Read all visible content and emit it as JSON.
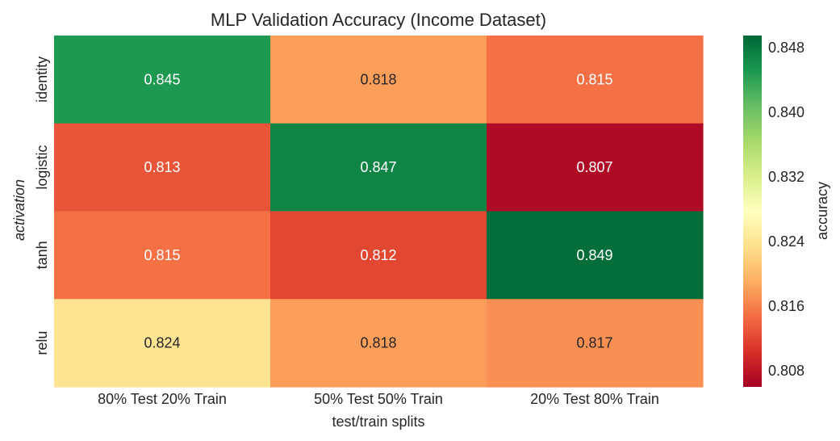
{
  "chart_data": {
    "type": "heatmap",
    "title": "MLP Validation Accuracy (Income Dataset)",
    "xlabel": "test/train splits",
    "ylabel": "activation",
    "x_categories": [
      "80% Test 20% Train",
      "50% Test 50% Train",
      "20% Test 80% Train"
    ],
    "y_categories": [
      "identity",
      "logistic",
      "tanh",
      "relu"
    ],
    "values": [
      [
        0.845,
        0.818,
        0.815
      ],
      [
        0.813,
        0.847,
        0.807
      ],
      [
        0.815,
        0.812,
        0.849
      ],
      [
        0.824,
        0.818,
        0.817
      ]
    ],
    "value_labels": [
      [
        "0.845",
        "0.818",
        "0.815"
      ],
      [
        "0.813",
        "0.847",
        "0.807"
      ],
      [
        "0.815",
        "0.812",
        "0.849"
      ],
      [
        "0.824",
        "0.818",
        "0.817"
      ]
    ],
    "colormap": "RdYlGn",
    "vmin": 0.806,
    "vmax": 0.8495,
    "colorbar": {
      "label": "accuracy",
      "ticks": [
        0.808,
        0.816,
        0.824,
        0.832,
        0.84,
        0.848
      ],
      "tick_labels": [
        "0.808",
        "0.816",
        "0.824",
        "0.832",
        "0.840",
        "0.848"
      ]
    },
    "grid": false
  }
}
